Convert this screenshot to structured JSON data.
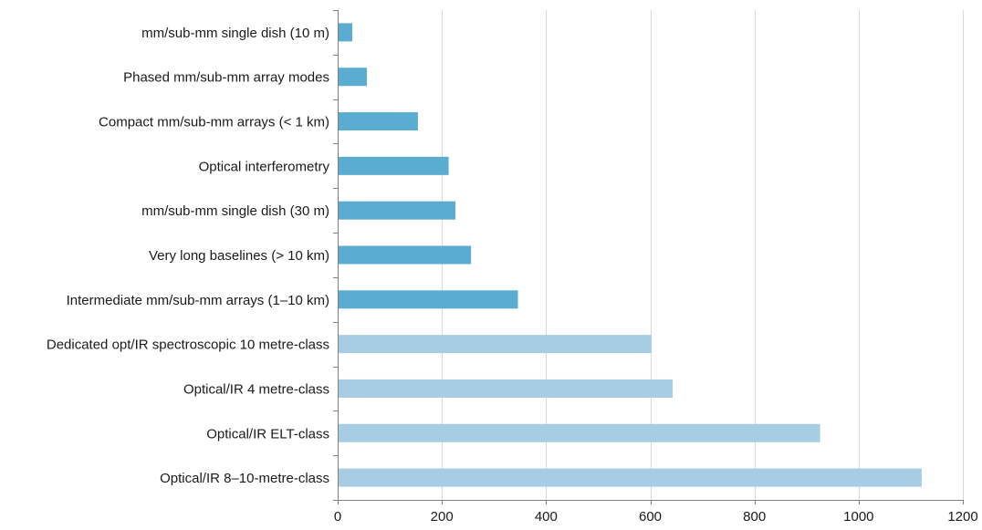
{
  "colors": {
    "dark_bar": "#5aacd1",
    "light_bar": "#a6cde3",
    "grid": "#d9d9d9",
    "axis": "#7f7f7f",
    "text": "#1a1a1a"
  },
  "chart_data": {
    "type": "bar",
    "orientation": "horizontal",
    "title": "",
    "xlabel": "",
    "ylabel": "",
    "xlim": [
      0,
      1200
    ],
    "x_ticks": [
      0,
      200,
      400,
      600,
      800,
      1000,
      1200
    ],
    "grid": "vertical",
    "categories": [
      "mm/sub-mm single dish (10 m)",
      "Phased mm/sub-mm array modes",
      "Compact mm/sub-mm arrays (< 1 km)",
      "Optical interferometry",
      "mm/sub-mm single dish (30 m)",
      "Very long baselines (> 10 km)",
      "Intermediate mm/sub-mm arrays (1–10 km)",
      "Dedicated opt/IR spectroscopic 10 metre-class",
      "Optical/IR 4 metre-class",
      "Optical/IR ELT-class",
      "Optical/IR 8–10-metre-class"
    ],
    "values": [
      28,
      56,
      154,
      213,
      226,
      256,
      346,
      602,
      643,
      926,
      1121
    ],
    "bar_color_group": [
      "dark",
      "dark",
      "dark",
      "dark",
      "dark",
      "dark",
      "dark",
      "light",
      "light",
      "light",
      "light"
    ]
  }
}
